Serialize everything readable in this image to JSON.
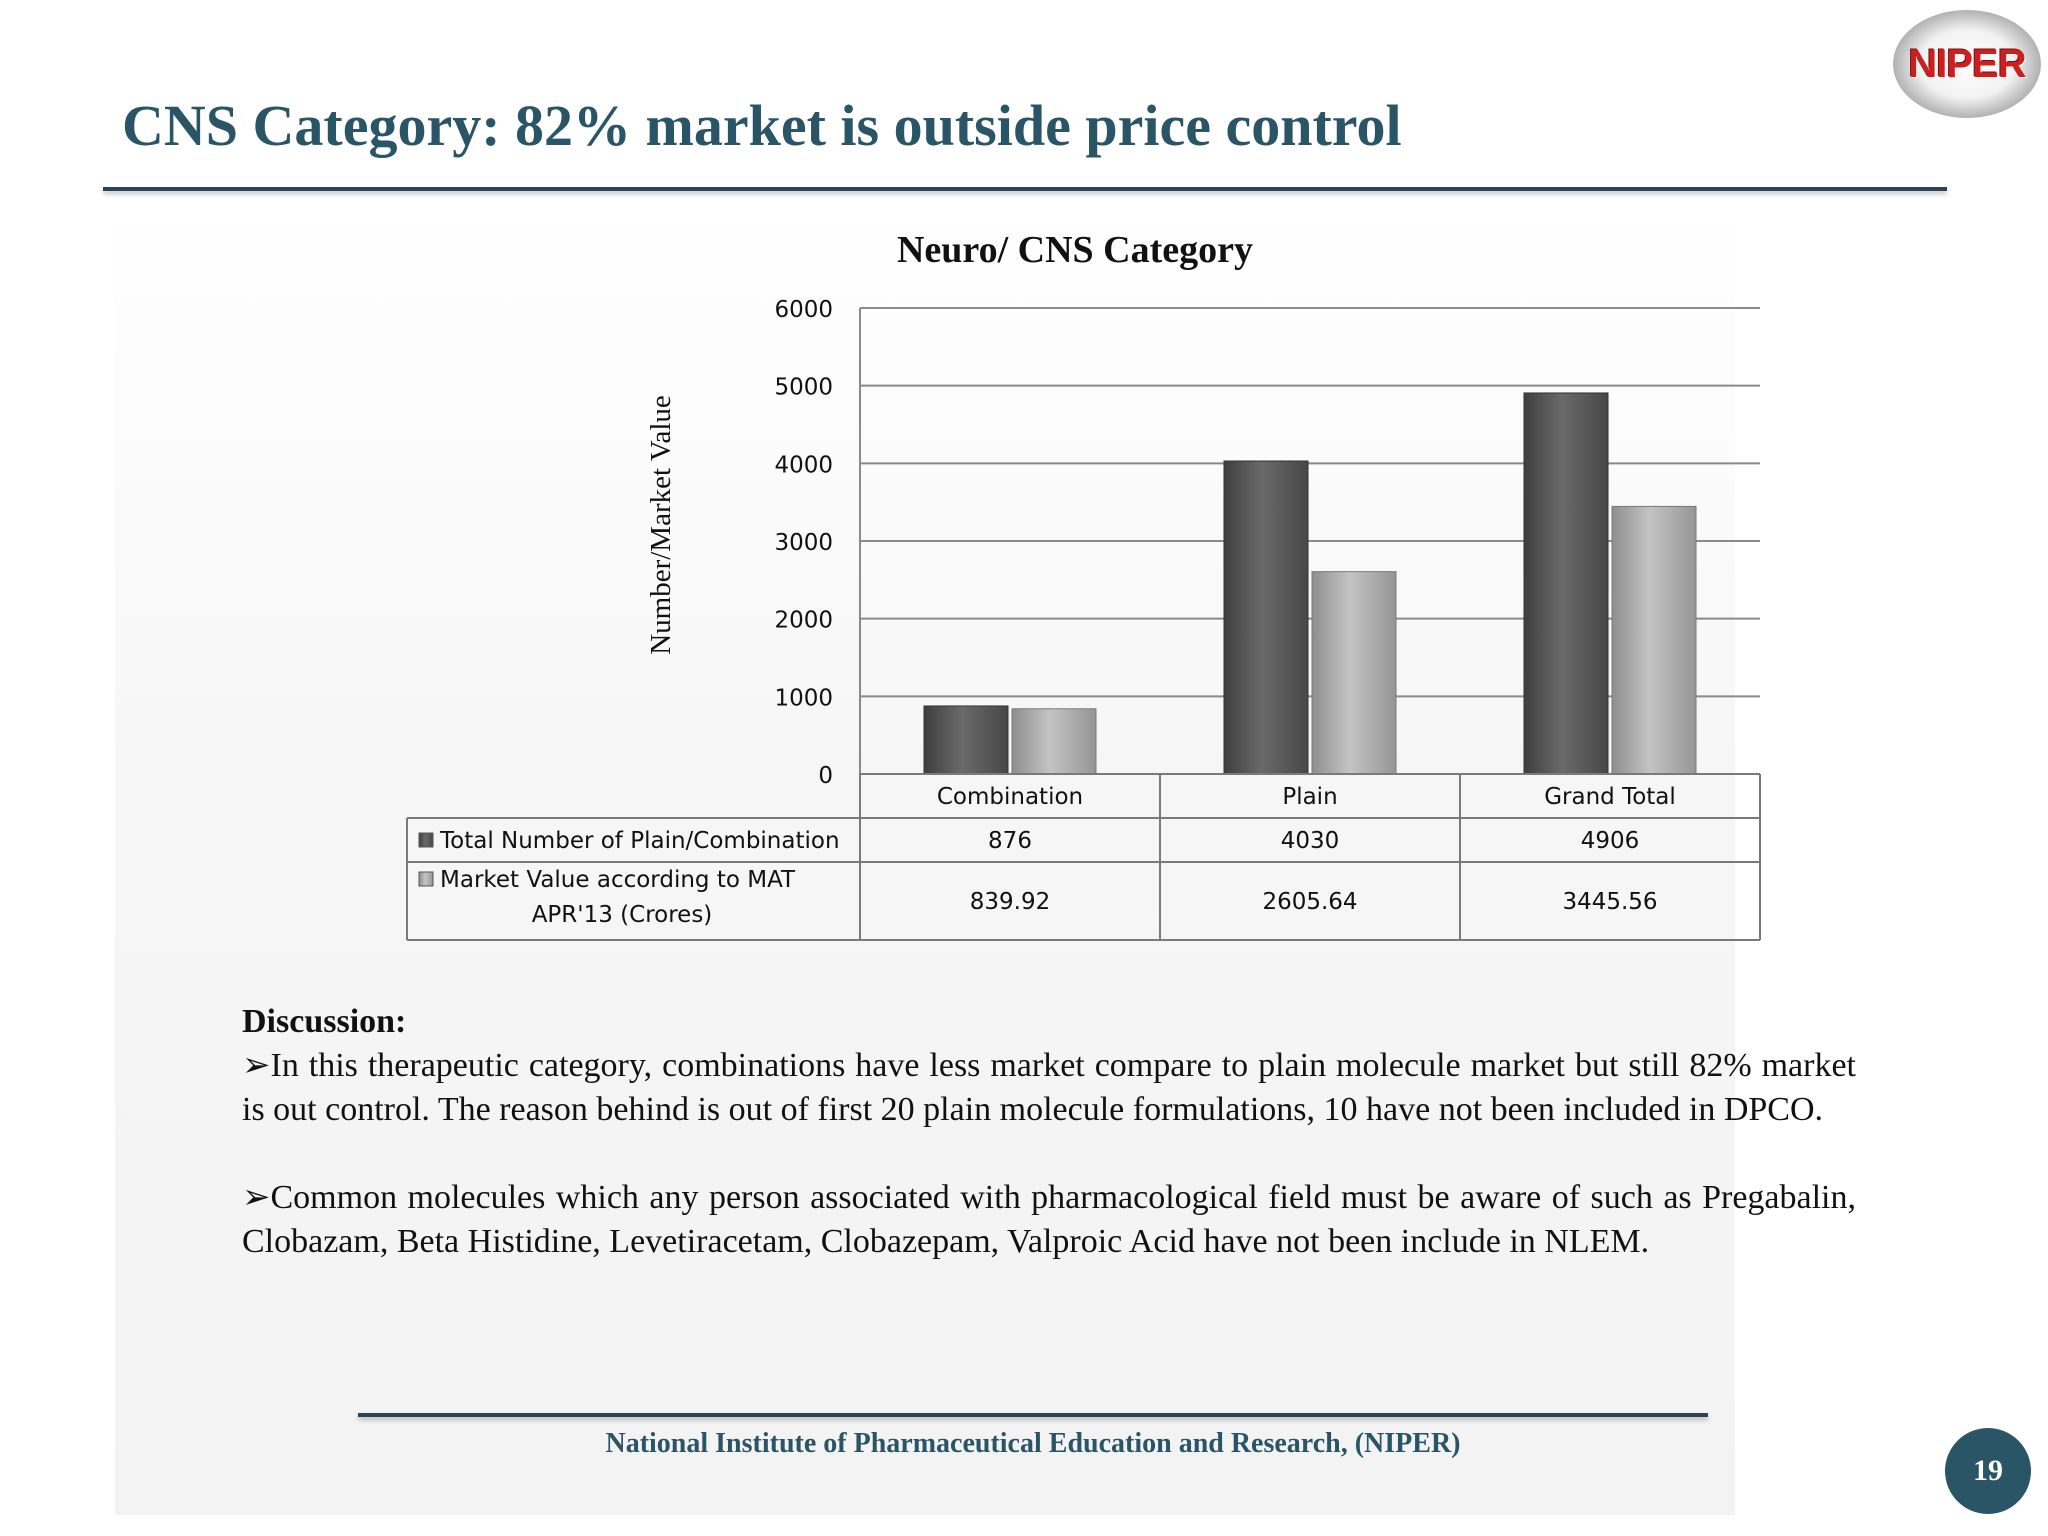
{
  "slide": {
    "title": "CNS Category: 82% market  is outside price control",
    "logo_text": "NIPER",
    "discussion_heading": "Discussion:",
    "bullet_glyph": "➢",
    "bullets": [
      "In this therapeutic category, combinations have less market compare to plain molecule market but still 82% market is out control. The  reason behind is out of first 20 plain molecule formulations, 10 have not been included in DPCO.",
      "Common molecules which any person associated with pharmacological field must be aware of such as Pregabalin, Clobazam, Beta Histidine, Levetiracetam, Clobazepam, Valproic Acid have not been include in NLEM."
    ],
    "footer": "National Institute of Pharmaceutical Education and Research, (NIPER)",
    "page_number": "19"
  },
  "chart_data": {
    "type": "bar",
    "title": "Neuro/ CNS Category",
    "xlabel": "",
    "ylabel": "Number/Market Value",
    "ylim": [
      0,
      6000
    ],
    "yticks": [
      0,
      1000,
      2000,
      3000,
      4000,
      5000,
      6000
    ],
    "grid": true,
    "legend": "data-table",
    "categories": [
      "Combination",
      "Plain",
      "Grand Total"
    ],
    "series": [
      {
        "name": "Total Number of Plain/Combination",
        "legend_lines": [
          "Total Number of Plain/Combination"
        ],
        "values": [
          876,
          4030,
          4906
        ],
        "labels": [
          "876",
          "4030",
          "4906"
        ],
        "color": "#5a5a5a"
      },
      {
        "name": "Market Value according to MAT APR'13  (Crores)",
        "legend_lines": [
          "Market Value according to MAT",
          "APR'13  (Crores)"
        ],
        "values": [
          839.92,
          2605.64,
          3445.56
        ],
        "labels": [
          "839.92",
          "2605.64",
          "3445.56"
        ],
        "color": "#a8a8a8"
      }
    ]
  }
}
